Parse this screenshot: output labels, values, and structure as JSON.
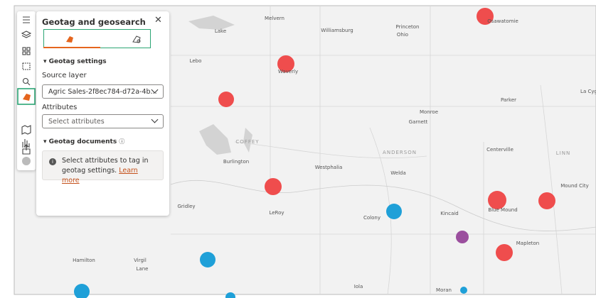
{
  "panel": {
    "title": "Geotag and geosearch",
    "geotag_settings": "Geotag settings",
    "source_layer_label": "Source layer",
    "source_layer_value": "Agric Sales-2f8ec784-d72a-4b...",
    "attributes_label": "Attributes",
    "attributes_placeholder": "Select attributes",
    "geotag_documents": "Geotag documents",
    "info_text": "Select attributes to tag in geotag settings.",
    "info_link": "Learn more"
  },
  "map": {
    "labels": [
      "Melvern",
      "Lake",
      "Williamsburg",
      "Princeton",
      "Ohio",
      "Osawatomie",
      "Lebo",
      "Waverly",
      "Parker",
      "La Cyg",
      "Monroe",
      "Garnett",
      "ANDERSON",
      "Burlington",
      "COFFEY",
      "Westphalia",
      "Welda",
      "Centerville",
      "LINN",
      "Mound City",
      "Blue Mound",
      "Kincaid",
      "Gridley",
      "LeRoy",
      "Colony",
      "Mapleton",
      "Hamilton",
      "Virgil",
      "Lane",
      "Iola",
      "Moran"
    ]
  }
}
